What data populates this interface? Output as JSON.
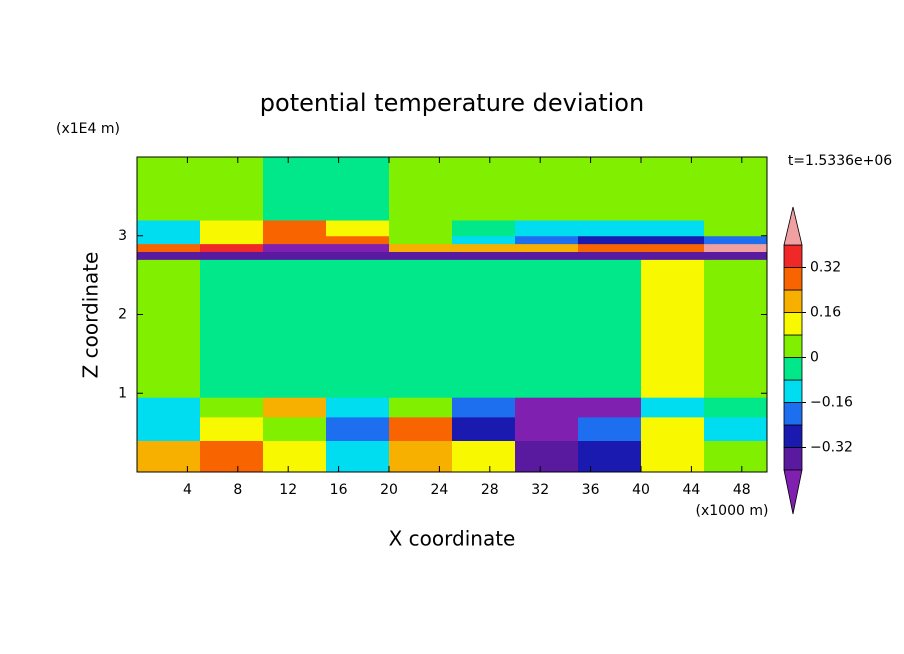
{
  "chart_data": {
    "type": "contour",
    "title": "potential temperature deviation",
    "x_label": "X coordinate",
    "y_label": "Z coordinate",
    "x_unit": "(x1000 m)",
    "y_unit": "(x1E4 m)",
    "annotation": "t=1.5336e+06",
    "xlim": [
      0,
      50
    ],
    "ylim": [
      0,
      4
    ],
    "xticks": [
      4,
      8,
      12,
      16,
      20,
      24,
      28,
      32,
      36,
      40,
      44,
      48
    ],
    "yticks": [
      1,
      2,
      3
    ],
    "x_edges": [
      0,
      5,
      10,
      15,
      20,
      25,
      30,
      35,
      40,
      45,
      50
    ],
    "y_edges": [
      0,
      0.4,
      0.7,
      0.95,
      2.7,
      2.8,
      2.9,
      3.0,
      3.2,
      4
    ],
    "z": [
      [
        0.2,
        0.3,
        0.1,
        -0.1,
        0.2,
        0.1,
        -0.35,
        -0.3,
        0.1,
        0.05
      ],
      [
        -0.1,
        0.1,
        0.05,
        -0.2,
        0.25,
        -0.3,
        -0.45,
        -0.2,
        0.15,
        -0.1
      ],
      [
        -0.1,
        0.05,
        0.2,
        -0.1,
        0.05,
        -0.2,
        -0.45,
        -0.45,
        -0.1,
        -0.05
      ],
      [
        0.04,
        -0.04,
        -0.04,
        -0.04,
        -0.04,
        -0.04,
        -0.04,
        -0.04,
        0.1,
        0.04
      ],
      [
        -0.35,
        -0.35,
        -0.35,
        -0.35,
        -0.35,
        -0.35,
        -0.35,
        -0.35,
        -0.35,
        -0.35
      ],
      [
        0.3,
        0.35,
        -0.45,
        -0.45,
        0.2,
        0.2,
        0.2,
        0.3,
        0.3,
        0.45
      ],
      [
        -0.1,
        0.1,
        0.3,
        0.3,
        0.05,
        -0.1,
        -0.2,
        -0.3,
        -0.3,
        -0.2
      ],
      [
        -0.1,
        0.15,
        0.25,
        0.15,
        0.04,
        -0.04,
        -0.1,
        -0.15,
        -0.1,
        0.04
      ],
      [
        0.04,
        0.04,
        -0.04,
        -0.04,
        0.04,
        0.04,
        0.04,
        0.04,
        0.04,
        0.04
      ]
    ],
    "levels": [
      -0.4,
      -0.32,
      -0.24,
      -0.16,
      -0.08,
      0,
      0.08,
      0.16,
      0.24,
      0.32,
      0.4
    ],
    "colors": [
      "#8020b0",
      "#5a1aa0",
      "#1a1ab0",
      "#1e6ef0",
      "#00dcf0",
      "#00e88a",
      "#80f000",
      "#f8f800",
      "#f8b000",
      "#f86400",
      "#f02828",
      "#f0a0a0"
    ],
    "colorbar_ticks": [
      {
        "value": -0.32,
        "label": "−0.32"
      },
      {
        "value": -0.16,
        "label": "−0.16"
      },
      0,
      0.16,
      0.32
    ]
  }
}
